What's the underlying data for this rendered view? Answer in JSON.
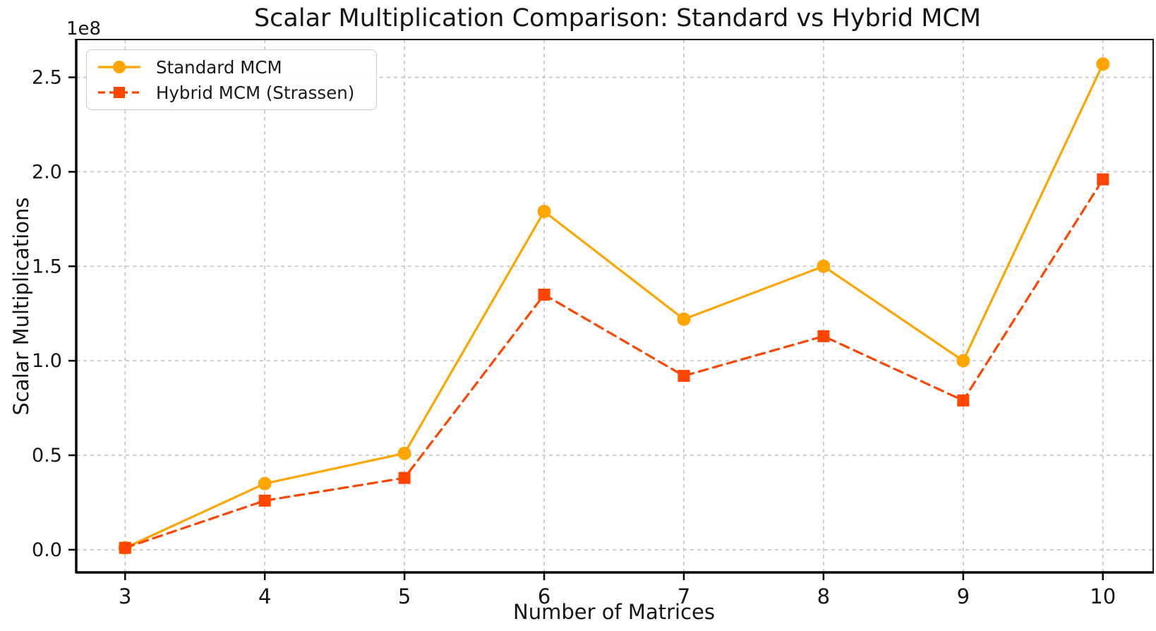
{
  "figure": {
    "title": "Scalar Multiplication Comparison: Standard vs Hybrid MCM",
    "y_offset_label": "1e8"
  },
  "chart_data": {
    "type": "line",
    "title": "Scalar Multiplication Comparison: Standard vs Hybrid MCM",
    "xlabel": "Number of Matrices",
    "ylabel": "Scalar Multiplications",
    "y_axis_multiplier_label": "1e8",
    "grid": true,
    "grid_style": "dashed",
    "legend_position": "upper-left",
    "x": [
      3,
      4,
      5,
      6,
      7,
      8,
      9,
      10
    ],
    "x_tick_labels": [
      "3",
      "4",
      "5",
      "6",
      "7",
      "8",
      "9",
      "10"
    ],
    "y_tick_values_e8": [
      0.0,
      0.5,
      1.0,
      1.5,
      2.0,
      2.5
    ],
    "y_tick_labels": [
      "0.0",
      "0.5",
      "1.0",
      "1.5",
      "2.0",
      "2.5"
    ],
    "xlim": [
      2.65,
      10.36
    ],
    "ylim_e8": [
      -0.12,
      2.7
    ],
    "series": [
      {
        "name": "Standard MCM",
        "color": "#FFA500",
        "linestyle": "solid",
        "marker": "circle",
        "values_e8": [
          0.01,
          0.35,
          0.51,
          1.79,
          1.22,
          1.5,
          1.0,
          2.57
        ]
      },
      {
        "name": "Hybrid MCM (Strassen)",
        "color": "#FF4500",
        "linestyle": "dashed",
        "marker": "square",
        "values_e8": [
          0.01,
          0.26,
          0.38,
          1.35,
          0.92,
          1.13,
          0.79,
          1.96
        ]
      }
    ]
  }
}
